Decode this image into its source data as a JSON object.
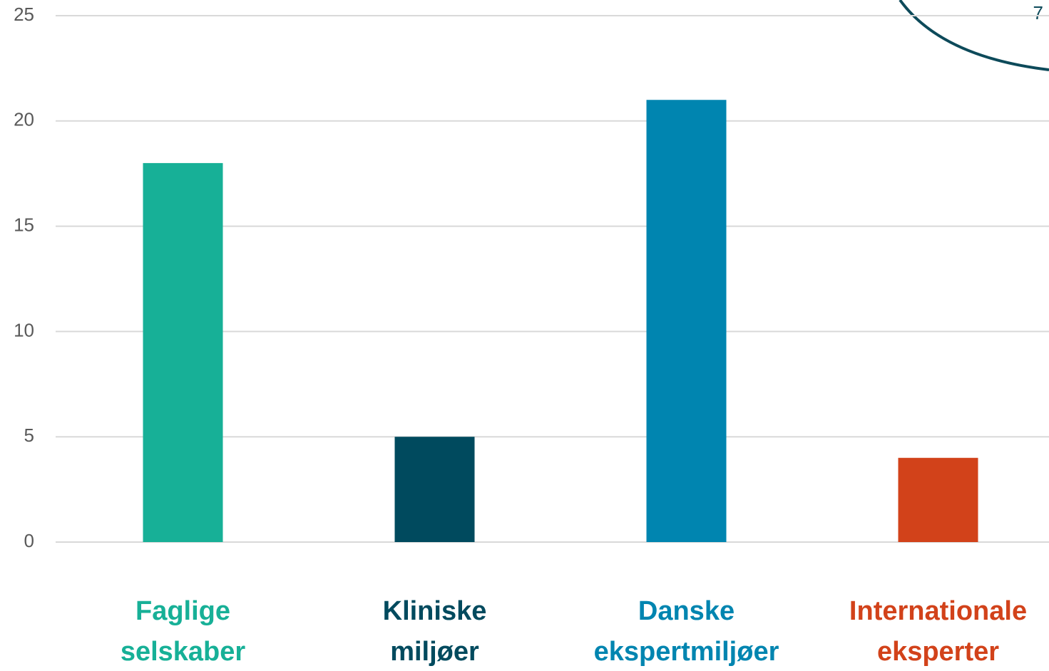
{
  "page_number": "7",
  "chart_data": {
    "type": "bar",
    "categories": [
      "Faglige\nselskaber",
      "Kliniske\nmiljøer",
      "Danske\nekspertmiljøer",
      "Internationale\neksperter"
    ],
    "values": [
      18,
      5,
      21,
      4
    ],
    "colors": [
      "#17b097",
      "#004a5e",
      "#0085b0",
      "#d2421a"
    ],
    "ylim": [
      0,
      25
    ],
    "yticks": [
      0,
      5,
      10,
      15,
      20,
      25
    ],
    "grid": true
  }
}
